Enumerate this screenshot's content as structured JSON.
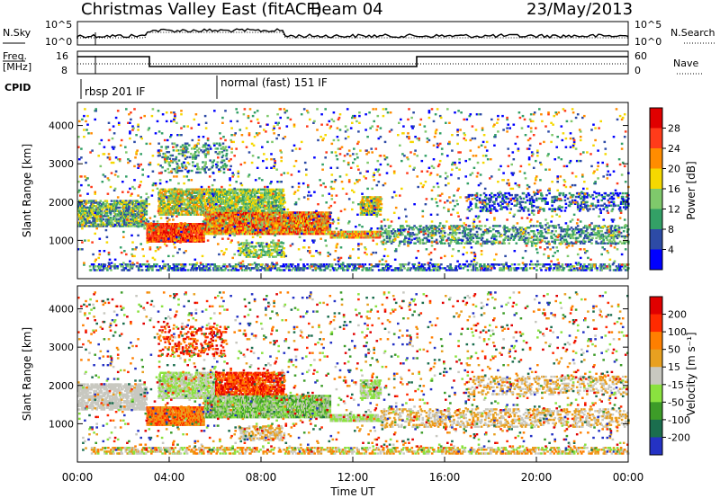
{
  "header": {
    "title": "Christmas Valley East (fitACF)",
    "beam": "Beam 04",
    "date": "23/May/2013"
  },
  "noise_panel": {
    "left_label": "N.Sky",
    "left_ticks": [
      "10^5",
      "10^0"
    ],
    "right_ticks": [
      "10^5",
      "10^0"
    ],
    "right_label": "N.Search"
  },
  "freq_panel": {
    "left_label_1": "Freq.",
    "left_label_2": "[MHz]",
    "left_ticks": [
      "16",
      "8"
    ],
    "right_ticks": [
      "60",
      "0"
    ],
    "right_label": "Nave"
  },
  "cpid": {
    "label": "CPID",
    "segments": [
      {
        "text": "rbsp 201 IF"
      },
      {
        "text": "normal (fast) 151 IF"
      }
    ]
  },
  "chart_data": [
    {
      "type": "heatmap",
      "name": "power",
      "ylabel": "Slant Range [km]",
      "yticks": [
        "4000",
        "3000",
        "2000",
        "1000"
      ],
      "colorbar_label": "Power [dB]",
      "colorbar_ticks": [
        "28",
        "24",
        "20",
        "16",
        "12",
        "8",
        "4"
      ],
      "colors": [
        "#0000ff",
        "#2d4ba6",
        "#33a066",
        "#7fc96b",
        "#f5d800",
        "#ff8c00",
        "#ff3b1a",
        "#e00000"
      ]
    },
    {
      "type": "heatmap",
      "name": "velocity",
      "ylabel": "Slant Range [km]",
      "yticks": [
        "4000",
        "3000",
        "2000",
        "1000"
      ],
      "colorbar_label": "Velocity [m s⁻¹]",
      "colorbar_ticks": [
        "200",
        "100",
        "50",
        "15",
        "-15",
        "-50",
        "-100",
        "-200"
      ],
      "colors": [
        "#2432c4",
        "#1b6e4e",
        "#3d9c28",
        "#8ae23f",
        "#c8c8c0",
        "#e8a020",
        "#ff7f00",
        "#ff2a00",
        "#e00000"
      ],
      "xlabel": "Time UT",
      "xticks": [
        "00:00",
        "04:00",
        "08:00",
        "12:00",
        "16:00",
        "20:00",
        "00:00"
      ]
    }
  ]
}
